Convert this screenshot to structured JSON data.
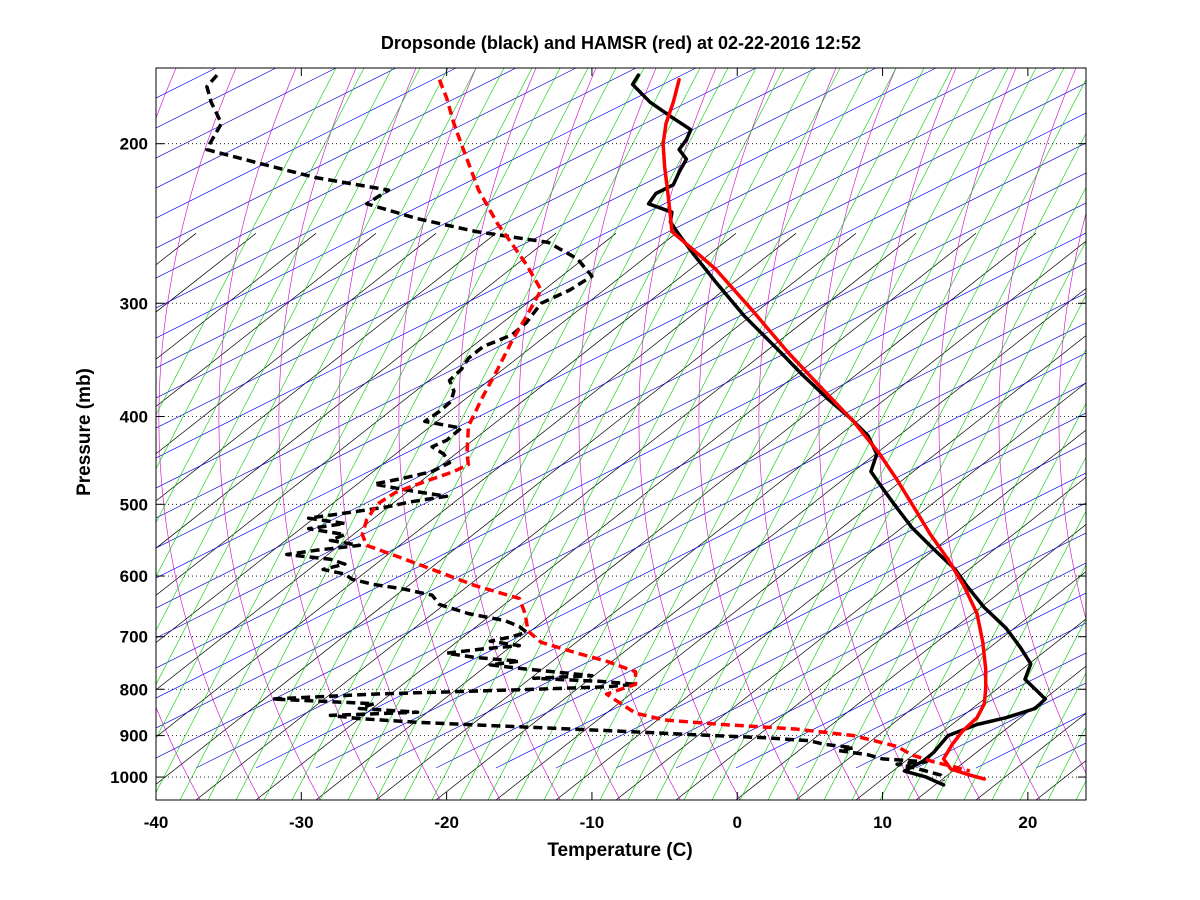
{
  "chart_data": {
    "type": "line",
    "title": "Dropsonde (black) and HAMSR (red) at 02-22-2016 12:52",
    "xlabel": "Temperature (C)",
    "ylabel": "Pressure (mb)",
    "xlim": [
      -40,
      24
    ],
    "ylim": [
      1060,
      165
    ],
    "y_scale": "log",
    "x_ticks": [
      -40,
      -30,
      -20,
      -10,
      0,
      10,
      20
    ],
    "y_ticks": [
      200,
      300,
      400,
      500,
      600,
      700,
      800,
      900,
      1000
    ],
    "grid": true,
    "background_line_colors": {
      "isotherms": "#000000",
      "dry_adiabats": "#0000cc",
      "moist_adiabats": "#cc00cc",
      "mixing_ratio": "#00cc00"
    },
    "series": [
      {
        "color": "#000000",
        "style": "solid",
        "points": [
          [
            -6.8,
            168
          ],
          [
            -7.2,
            172
          ],
          [
            -6.0,
            180
          ],
          [
            -4.5,
            187
          ],
          [
            -3.2,
            193
          ],
          [
            -3.5,
            198
          ],
          [
            -4.0,
            203
          ],
          [
            -3.5,
            208
          ],
          [
            -4.0,
            215
          ],
          [
            -4.4,
            222
          ],
          [
            -5.6,
            227
          ],
          [
            -6.1,
            233
          ],
          [
            -4.5,
            238
          ],
          [
            -4.6,
            244
          ],
          [
            -4.0,
            252
          ],
          [
            -3.0,
            265
          ],
          [
            -1.5,
            284
          ],
          [
            0.5,
            310
          ],
          [
            3.0,
            340
          ],
          [
            4.5,
            360
          ],
          [
            6.2,
            382
          ],
          [
            7.8,
            402
          ],
          [
            9.0,
            420
          ],
          [
            9.6,
            440
          ],
          [
            9.2,
            460
          ],
          [
            10.0,
            480
          ],
          [
            10.8,
            500
          ],
          [
            12.0,
            530
          ],
          [
            13.5,
            560
          ],
          [
            15.0,
            590
          ],
          [
            15.8,
            615
          ],
          [
            17.0,
            650
          ],
          [
            18.5,
            685
          ],
          [
            19.5,
            720
          ],
          [
            20.2,
            750
          ],
          [
            19.8,
            780
          ],
          [
            21.2,
            820
          ],
          [
            20.5,
            840
          ],
          [
            18.5,
            860
          ],
          [
            16.5,
            875
          ],
          [
            14.5,
            900
          ],
          [
            13.5,
            940
          ],
          [
            12.8,
            960
          ],
          [
            11.5,
            985
          ],
          [
            13.0,
            1000
          ],
          [
            14.2,
            1020
          ]
        ]
      },
      {
        "color": "#000000",
        "style": "dashed",
        "points": [
          [
            -35.8,
            168
          ],
          [
            -36.5,
            173
          ],
          [
            -36.2,
            180
          ],
          [
            -35.5,
            190
          ],
          [
            -36.3,
            200
          ],
          [
            -36.5,
            203
          ],
          [
            -33,
            210
          ],
          [
            -29,
            218
          ],
          [
            -24,
            225
          ],
          [
            -25.5,
            233
          ],
          [
            -22,
            242
          ],
          [
            -18,
            250
          ],
          [
            -13,
            257
          ],
          [
            -11,
            268
          ],
          [
            -10,
            280
          ],
          [
            -11.5,
            290
          ],
          [
            -13.5,
            300
          ],
          [
            -14.5,
            315
          ],
          [
            -15.5,
            325
          ],
          [
            -17.5,
            335
          ],
          [
            -18.5,
            345
          ],
          [
            -19,
            355
          ],
          [
            -19.8,
            365
          ],
          [
            -19.5,
            375
          ],
          [
            -19.7,
            385
          ],
          [
            -20.5,
            395
          ],
          [
            -21.5,
            405
          ],
          [
            -19,
            412
          ],
          [
            -20,
            425
          ],
          [
            -21,
            432
          ],
          [
            -20.2,
            440
          ],
          [
            -19.8,
            450
          ],
          [
            -21,
            460
          ],
          [
            -23,
            468
          ],
          [
            -25,
            475
          ],
          [
            -22.5,
            483
          ],
          [
            -20,
            490
          ],
          [
            -22.5,
            497
          ],
          [
            -24,
            503
          ],
          [
            -26.5,
            510
          ],
          [
            -29.5,
            518
          ],
          [
            -27,
            525
          ],
          [
            -29.5,
            532
          ],
          [
            -27,
            540
          ],
          [
            -28,
            548
          ],
          [
            -26,
            555
          ],
          [
            -29,
            562
          ],
          [
            -31,
            568
          ],
          [
            -28,
            575
          ],
          [
            -27,
            582
          ],
          [
            -28.5,
            590
          ],
          [
            -27,
            597
          ],
          [
            -26.5,
            605
          ],
          [
            -25,
            613
          ],
          [
            -23,
            620
          ],
          [
            -21,
            630
          ],
          [
            -20.5,
            645
          ],
          [
            -18.5,
            660
          ],
          [
            -16,
            672
          ],
          [
            -15,
            682
          ],
          [
            -14.5,
            692
          ],
          [
            -15.5,
            700
          ],
          [
            -17,
            708
          ],
          [
            -15,
            716
          ],
          [
            -17.5,
            722
          ],
          [
            -20,
            730
          ],
          [
            -18,
            738
          ],
          [
            -15,
            745
          ],
          [
            -17,
            752
          ],
          [
            -14.5,
            760
          ],
          [
            -12,
            767
          ],
          [
            -10,
            773
          ],
          [
            -14,
            778
          ],
          [
            -9.5,
            784
          ],
          [
            -7,
            790
          ],
          [
            -9,
            795
          ],
          [
            -14,
            800
          ],
          [
            -25,
            810
          ],
          [
            -32,
            820
          ],
          [
            -25,
            830
          ],
          [
            -26,
            840
          ],
          [
            -22,
            848
          ],
          [
            -28,
            855
          ],
          [
            -26,
            862
          ],
          [
            -22,
            870
          ],
          [
            -15,
            880
          ],
          [
            -8,
            890
          ],
          [
            -3,
            898
          ],
          [
            2,
            905
          ],
          [
            5,
            912
          ],
          [
            6,
            920
          ],
          [
            8,
            928
          ],
          [
            7,
            935
          ],
          [
            9,
            945
          ],
          [
            10,
            955
          ],
          [
            13,
            962
          ],
          [
            11,
            968
          ],
          [
            12,
            975
          ],
          [
            13,
            985
          ],
          [
            14,
            995
          ],
          [
            14.2,
            1010
          ]
        ]
      },
      {
        "color": "#ff0000",
        "style": "solid",
        "points": [
          [
            -4.0,
            170
          ],
          [
            -4.4,
            180
          ],
          [
            -4.9,
            190
          ],
          [
            -5.1,
            200
          ],
          [
            -5.0,
            212
          ],
          [
            -4.8,
            225
          ],
          [
            -4.6,
            240
          ],
          [
            -4.5,
            250
          ],
          [
            -3.5,
            258
          ],
          [
            -1.5,
            275
          ],
          [
            1.0,
            305
          ],
          [
            3.5,
            340
          ],
          [
            6.0,
            375
          ],
          [
            8.0,
            405
          ],
          [
            9.8,
            440
          ],
          [
            11.0,
            470
          ],
          [
            12.2,
            505
          ],
          [
            13.3,
            540
          ],
          [
            14.5,
            575
          ],
          [
            15.6,
            615
          ],
          [
            16.5,
            660
          ],
          [
            16.9,
            710
          ],
          [
            17.1,
            760
          ],
          [
            17.1,
            800
          ],
          [
            17.0,
            830
          ],
          [
            16.5,
            860
          ],
          [
            15.5,
            890
          ],
          [
            14.8,
            920
          ],
          [
            14.2,
            955
          ],
          [
            14.7,
            980
          ],
          [
            16.0,
            995
          ],
          [
            17.0,
            1005
          ]
        ]
      },
      {
        "color": "#ff0000",
        "style": "dashed",
        "points": [
          [
            -20.5,
            170
          ],
          [
            -20.0,
            178
          ],
          [
            -19.5,
            190
          ],
          [
            -19.0,
            200
          ],
          [
            -18.5,
            210
          ],
          [
            -17.8,
            225
          ],
          [
            -16.5,
            245
          ],
          [
            -15.5,
            258
          ],
          [
            -14.5,
            272
          ],
          [
            -13.5,
            290
          ],
          [
            -14.5,
            310
          ],
          [
            -15.5,
            330
          ],
          [
            -16.5,
            355
          ],
          [
            -17.5,
            380
          ],
          [
            -18.5,
            410
          ],
          [
            -18.6,
            440
          ],
          [
            -18.5,
            452
          ],
          [
            -19.5,
            460
          ],
          [
            -21.5,
            472
          ],
          [
            -23.5,
            485
          ],
          [
            -24.8,
            500
          ],
          [
            -25.5,
            520
          ],
          [
            -25.8,
            540
          ],
          [
            -25.5,
            555
          ],
          [
            -23.5,
            570
          ],
          [
            -21,
            590
          ],
          [
            -18,
            615
          ],
          [
            -15,
            635
          ],
          [
            -14.6,
            660
          ],
          [
            -14.4,
            690
          ],
          [
            -13.5,
            710
          ],
          [
            -11,
            730
          ],
          [
            -9,
            745
          ],
          [
            -7,
            765
          ],
          [
            -7,
            790
          ],
          [
            -9,
            810
          ],
          [
            -8,
            830
          ],
          [
            -7,
            850
          ],
          [
            -5,
            865
          ],
          [
            -1,
            875
          ],
          [
            4,
            885
          ],
          [
            8,
            900
          ],
          [
            11,
            925
          ],
          [
            12,
            945
          ],
          [
            13.5,
            962
          ],
          [
            15,
            975
          ],
          [
            16,
            985
          ]
        ]
      }
    ]
  }
}
